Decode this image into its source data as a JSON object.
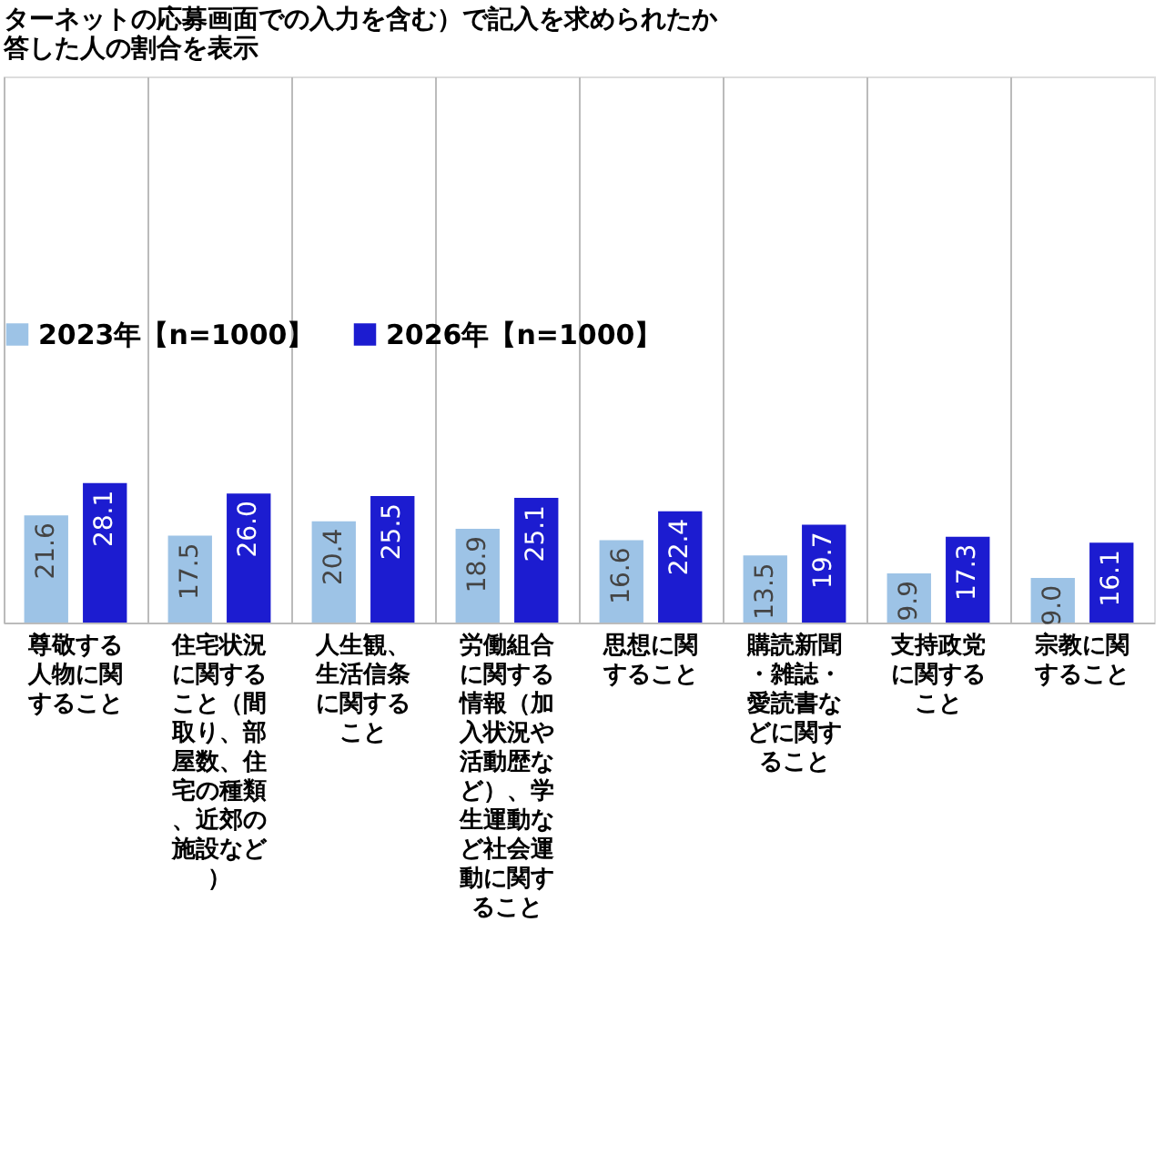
{
  "chart_data": {
    "type": "bar",
    "title": [
      "ターネットの応募画面での入力を含む）で記入を求められたか",
      "答した人の割合を表示"
    ],
    "categories": [
      "尊敬する人物に関すること",
      "住宅状況に関すること（間取り、部屋数、住宅の種類、近郊の施設など）",
      "人生観、生活信条に関すること",
      "労働組合に関する情報（加入状況や活動歴など）、学生運動など社会運動に関すること",
      "思想に関すること",
      "購読新聞・雑誌・愛読書などに関すること",
      "支持政党に関すること",
      "宗教に関すること"
    ],
    "series": [
      {
        "name": "2023年【n=1000】",
        "color": "#9dc3e6",
        "values": [
          21.6,
          17.5,
          20.4,
          18.9,
          16.6,
          13.5,
          9.9,
          9.0
        ],
        "value_labels": [
          "21.6",
          "17.5",
          "20.4",
          "18.9",
          "16.6",
          "13.5",
          "9.9",
          "9.0"
        ]
      },
      {
        "name": "2026年【n=1000】",
        "color": "#1c1cd0",
        "values": [
          28.1,
          26.0,
          25.5,
          25.1,
          22.4,
          19.7,
          17.3,
          16.1
        ],
        "value_labels": [
          "28.1",
          "26.0",
          "25.5",
          "25.1",
          "22.4",
          "19.7",
          "17.3",
          "16.1"
        ]
      }
    ],
    "ylim": [
      0,
      110
    ],
    "tick_labels": "x",
    "grid": "x",
    "legend": "top"
  }
}
